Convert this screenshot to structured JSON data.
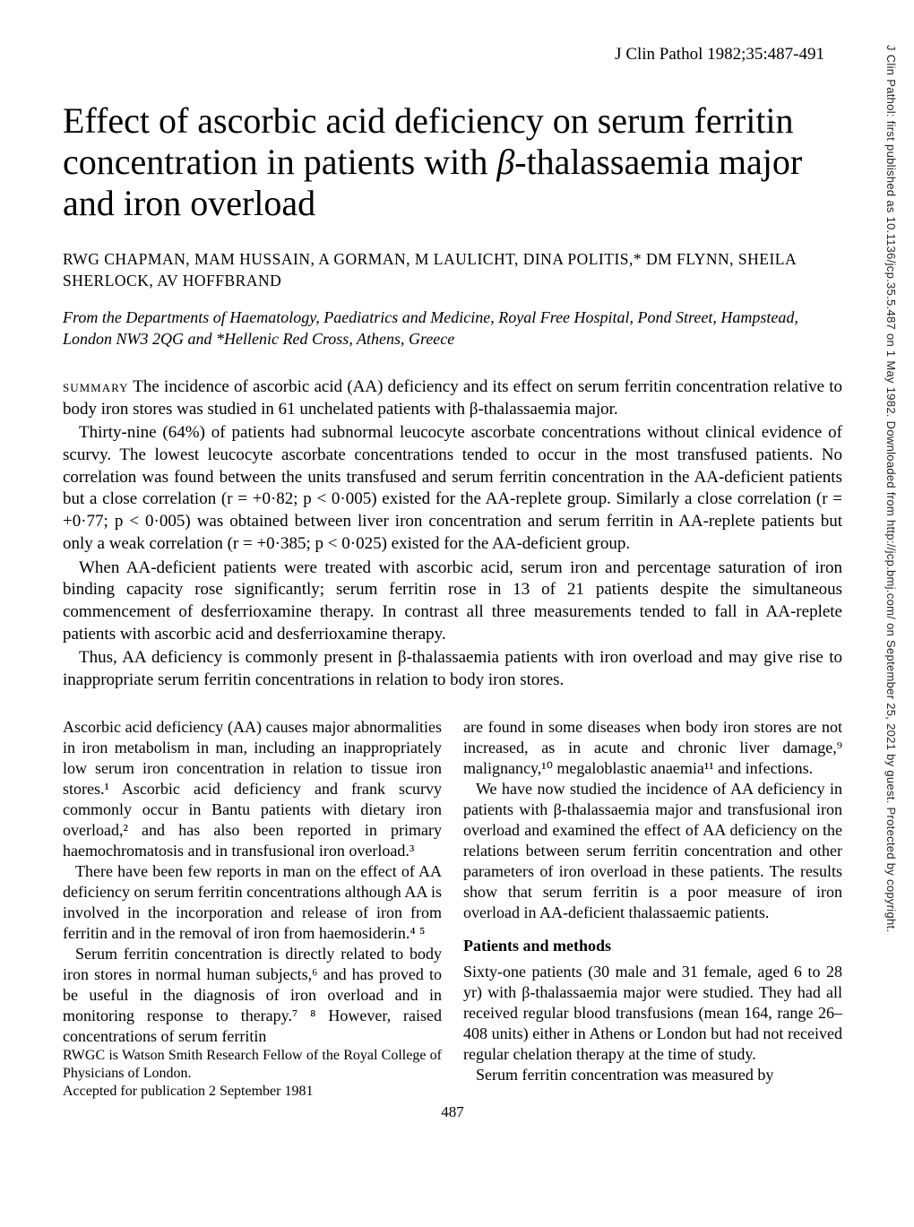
{
  "journal_ref": "J Clin Pathol 1982;35:487-491",
  "sidebar": "J Clin Pathol: first published as 10.1136/jcp.35.5.487 on 1 May 1982. Downloaded from http://jcp.bmj.com/ on September 25, 2021 by guest. Protected by copyright.",
  "title_line1": "Effect of ascorbic acid deficiency on serum ferritin",
  "title_line2_a": "concentration in patients with ",
  "title_line2_b": "β",
  "title_line2_c": "-thalassaemia major",
  "title_line3": "and iron overload",
  "authors": "RWG CHAPMAN, MAM HUSSAIN, A GORMAN, M LAULICHT, DINA POLITIS,* DM FLYNN, SHEILA SHERLOCK, AV HOFFBRAND",
  "affiliation": "From the Departments of Haematology, Paediatrics and Medicine, Royal Free Hospital, Pond Street, Hampstead, London NW3 2QG and *Hellenic Red Cross, Athens, Greece",
  "summary_label": "summary",
  "summary_p1": "   The incidence of ascorbic acid (AA) deficiency and its effect on serum ferritin concentration relative to body iron stores was studied in 61 unchelated patients with β-thalassaemia major.",
  "summary_p2": "Thirty-nine (64%) of patients had subnormal leucocyte ascorbate concentrations without clinical evidence of scurvy. The lowest leucocyte ascorbate concentrations tended to occur in the most transfused patients. No correlation was found between the units transfused and serum ferritin concentration in the AA-deficient patients but a close correlation (r = +0·82; p < 0·005) existed for the AA-replete group. Similarly a close correlation (r = +0·77; p < 0·005) was obtained between liver iron concentration and serum ferritin in AA-replete patients but only a weak correlation (r = +0·385; p < 0·025) existed for the AA-deficient group.",
  "summary_p3": "When AA-deficient patients were treated with ascorbic acid, serum iron and percentage saturation of iron binding capacity rose significantly; serum ferritin rose in 13 of 21 patients despite the simultaneous commencement of desferrioxamine therapy. In contrast all three measurements tended to fall in AA-replete patients with ascorbic acid and desferrioxamine therapy.",
  "summary_p4": "Thus, AA deficiency is commonly present in β-thalassaemia patients with iron overload and may give rise to inappropriate serum ferritin concentrations in relation to body iron stores.",
  "left": {
    "p1": "Ascorbic acid deficiency (AA) causes major abnormalities in iron metabolism in man, including an inappropriately low serum iron concentration in relation to tissue iron stores.¹ Ascorbic acid deficiency and frank scurvy commonly occur in Bantu patients with dietary iron overload,² and has also been reported in primary haemochromatosis and in transfusional iron overload.³",
    "p2": "There have been few reports in man on the effect of AA deficiency on serum ferritin concentrations although AA is involved in the incorporation and release of iron from ferritin and in the removal of iron from haemosiderin.⁴ ⁵",
    "p3": "Serum ferritin concentration is directly related to body iron stores in normal human subjects,⁶ and has proved to be useful in the diagnosis of iron overload and in monitoring response to therapy.⁷ ⁸ However, raised concentrations of serum ferritin",
    "footnote": "RWGC is Watson Smith Research Fellow of the Royal College of Physicians of London.",
    "accepted": "Accepted for publication 2 September 1981"
  },
  "right": {
    "p1": "are found in some diseases when body iron stores are not increased, as in acute and chronic liver damage,⁹ malignancy,¹⁰ megaloblastic anaemia¹¹ and infections.",
    "p2": "We have now studied the incidence of AA deficiency in patients with β-thalassaemia major and transfusional iron overload and examined the effect of AA deficiency on the relations between serum ferritin concentration and other parameters of iron overload in these patients. The results show that serum ferritin is a poor measure of iron overload in AA-deficient thalassaemic patients.",
    "section": "Patients and methods",
    "p3": "Sixty-one patients (30 male and 31 female, aged 6 to 28 yr) with β-thalassaemia major were studied. They had all received regular blood transfusions (mean 164, range 26–408 units) either in Athens or London but had not received regular chelation therapy at the time of study.",
    "p4": "Serum ferritin concentration was measured by"
  },
  "pagenum": "487"
}
